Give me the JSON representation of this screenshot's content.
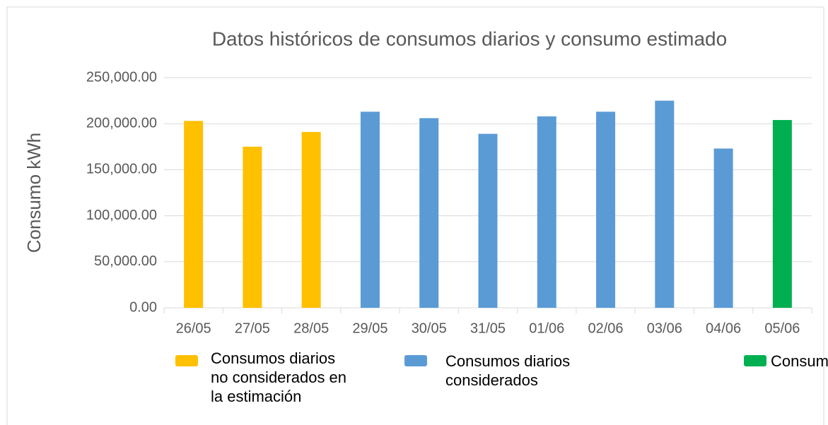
{
  "chart_data": {
    "type": "bar",
    "title": "Datos históricos de consumos diarios y consumo estimado",
    "y_label": "Consumo  kWh",
    "categories": [
      "26/05",
      "27/05",
      "28/05",
      "29/05",
      "30/05",
      "31/05",
      "01/06",
      "02/06",
      "03/06",
      "04/06",
      "05/06"
    ],
    "series": [
      {
        "name": "Consumos diarios no considerados en la estimación",
        "color": "#ffc000",
        "values": [
          203000,
          175000,
          191000,
          null,
          null,
          null,
          null,
          null,
          null,
          null,
          null
        ]
      },
      {
        "name": "Consumos diarios considerados",
        "color": "#5b9bd5",
        "values": [
          null,
          null,
          null,
          213000,
          206000,
          189000,
          208000,
          213000,
          225000,
          173000,
          null
        ]
      },
      {
        "name": "Consumo",
        "color": "#00b050",
        "values": [
          null,
          null,
          null,
          null,
          null,
          null,
          null,
          null,
          null,
          null,
          204000
        ]
      }
    ],
    "ylim": [
      0,
      250000
    ],
    "yticks": [
      {
        "value": 0,
        "label": "0.00"
      },
      {
        "value": 50000,
        "label": "50,000.00"
      },
      {
        "value": 100000,
        "label": "100,000.00"
      },
      {
        "value": 150000,
        "label": "150,000.00"
      },
      {
        "value": 200000,
        "label": "200,000.00"
      },
      {
        "value": 250000,
        "label": "250,000.00"
      }
    ],
    "grid": true
  }
}
